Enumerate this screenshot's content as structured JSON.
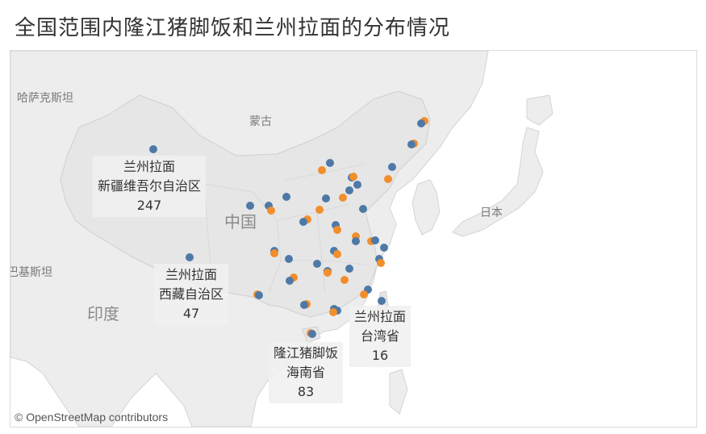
{
  "title": "全国范围内隆江猪脚饭和兰州拉面的分布情况",
  "colors": {
    "lanzhou": "#4e79a7",
    "longjiang": "#f28e2b",
    "land": "#ededed",
    "land_china": "#e6e6e6",
    "water": "#ffffff",
    "border": "#cfcfcf"
  },
  "legend_series": {
    "lanzhou": "兰州拉面",
    "longjiang": "隆江猪脚饭"
  },
  "geo_labels": {
    "kazakhstan": "哈萨克斯坦",
    "mongolia": "蒙古",
    "china": "中国",
    "japan": "日本",
    "pakistan": "巴基斯坦",
    "india": "印度"
  },
  "callouts": [
    {
      "series": "兰州拉面",
      "region": "新疆维吾尔自治区",
      "value": "247"
    },
    {
      "series": "兰州拉面",
      "region": "西藏自治区",
      "value": "47"
    },
    {
      "series": "隆江猪脚饭",
      "region": "海南省",
      "value": "83"
    },
    {
      "series": "兰州拉面",
      "region": "台湾省",
      "value": "16"
    }
  ],
  "attribution": "© OpenStreetMap contributors"
}
